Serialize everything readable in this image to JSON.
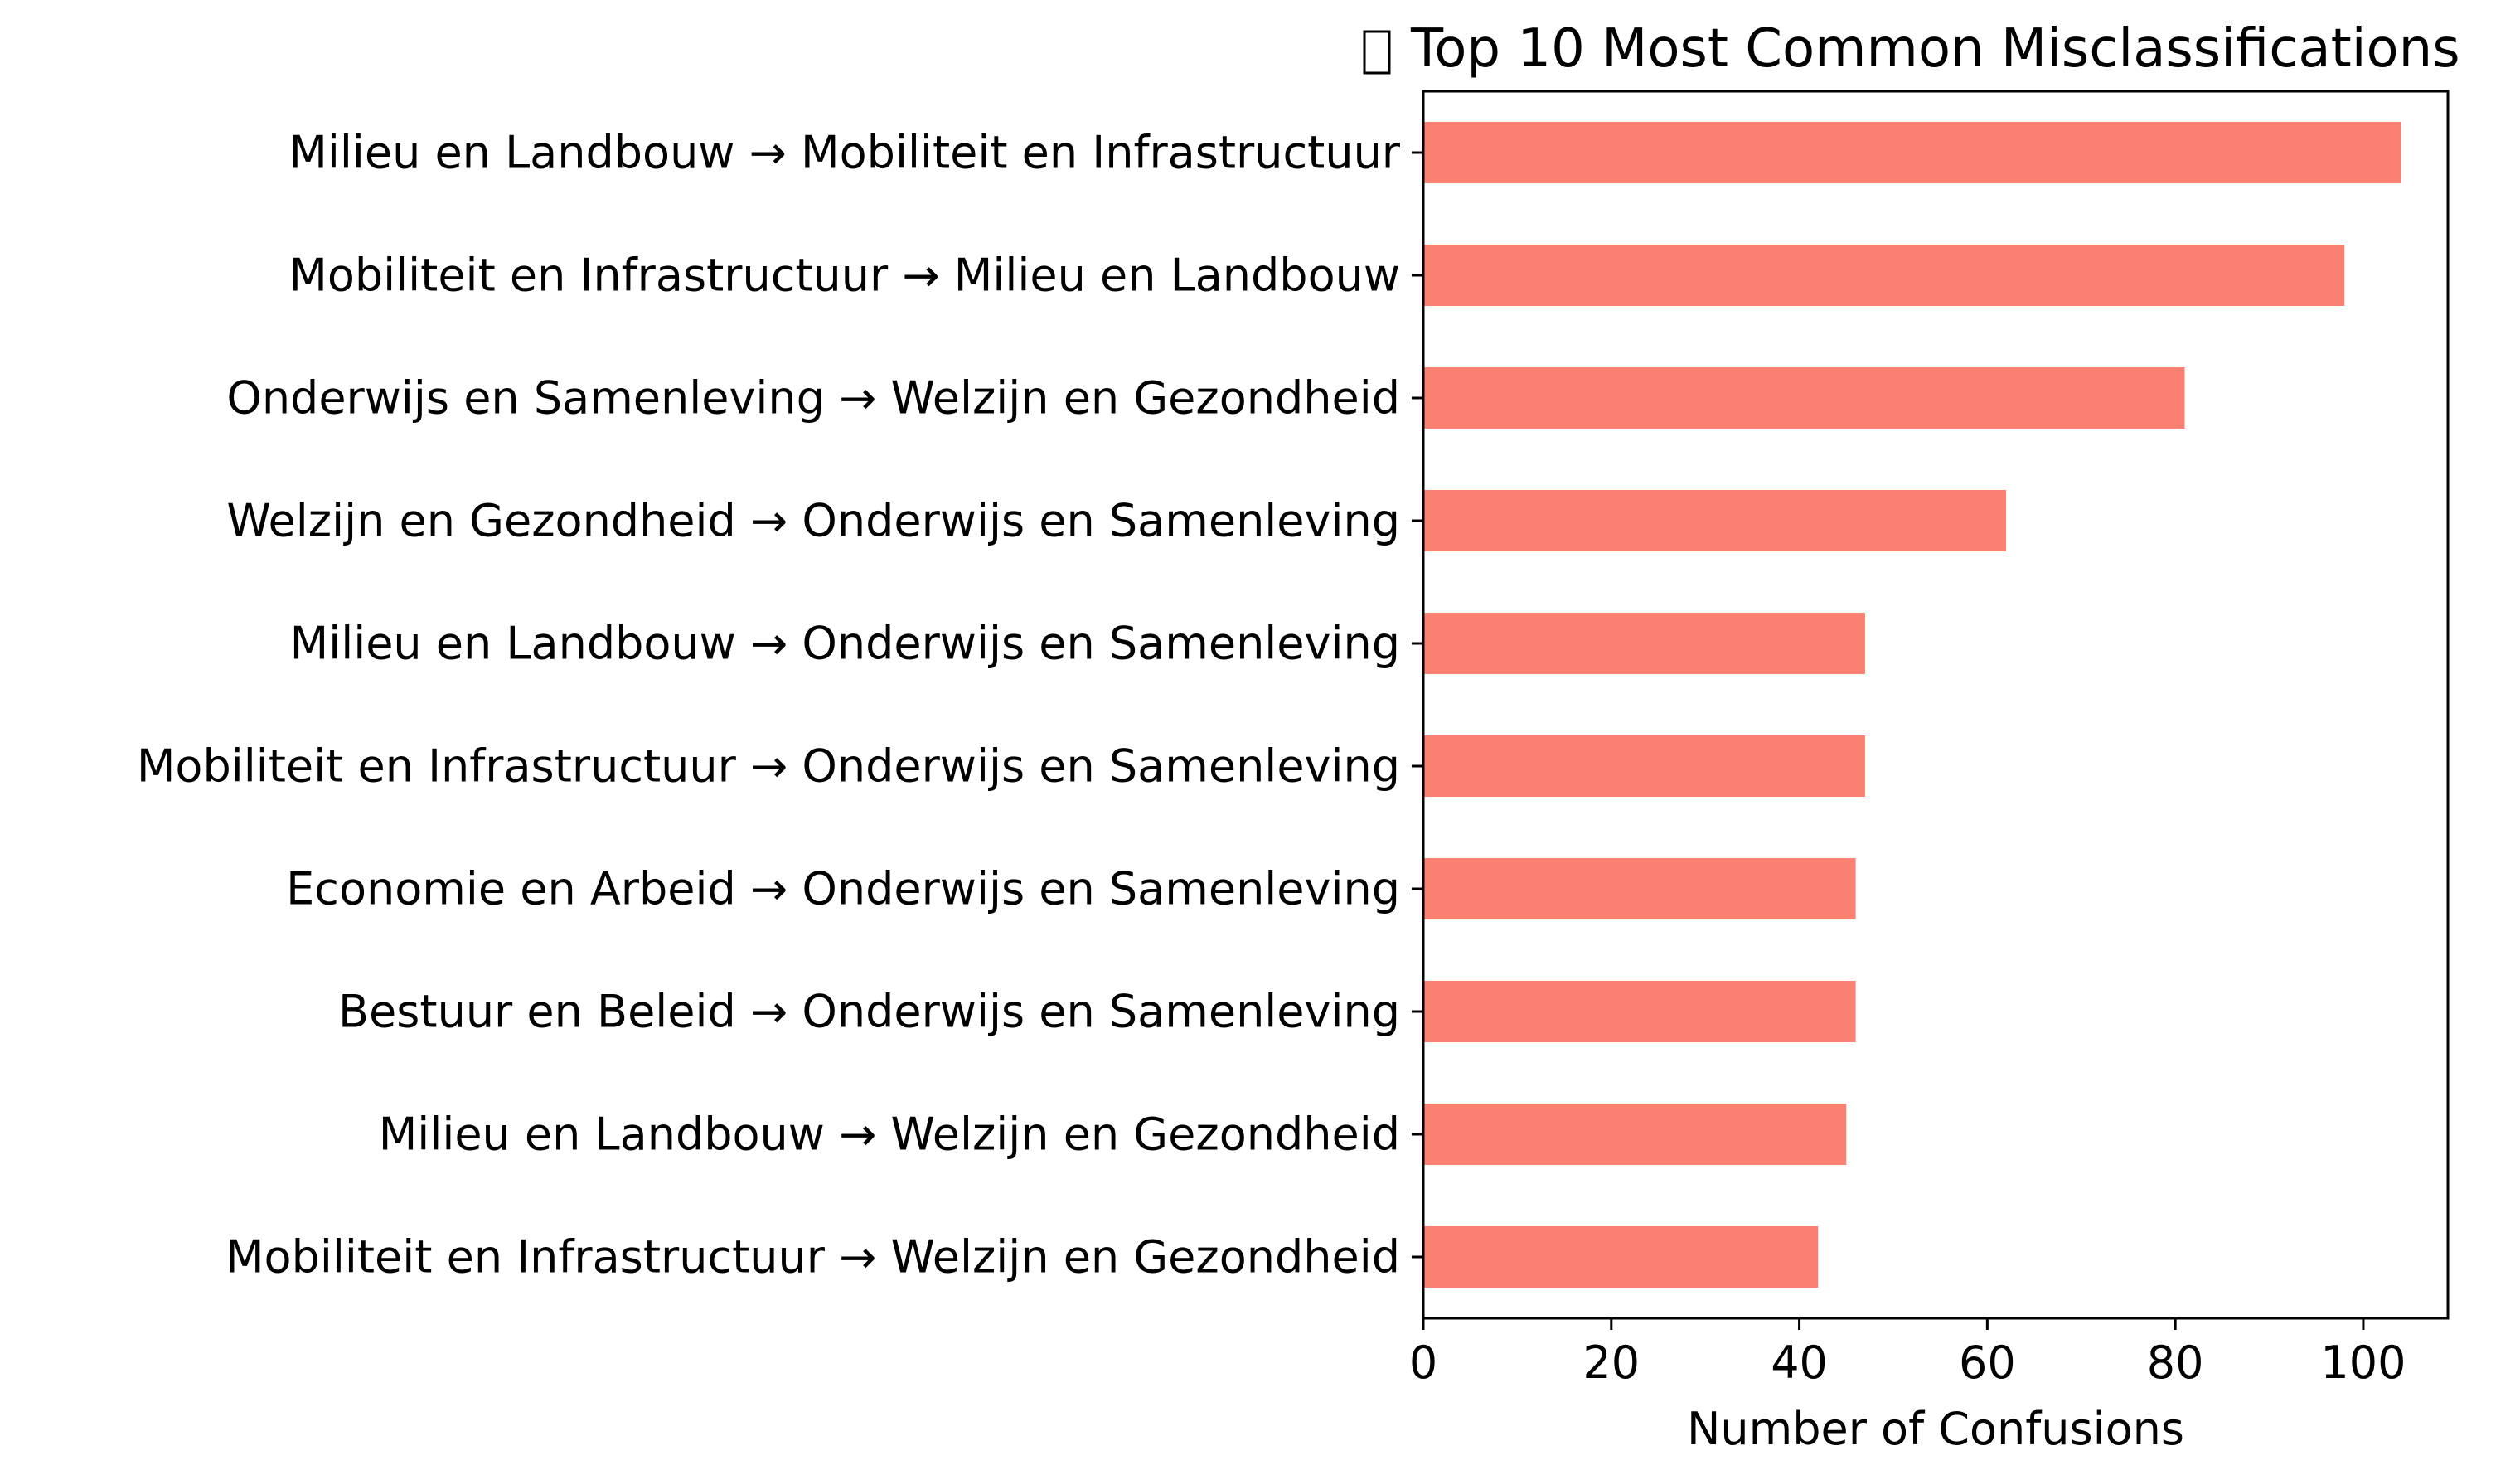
{
  "chart_data": {
    "type": "bar",
    "orientation": "horizontal",
    "title": "Top 10 Most Common Misclassifications",
    "title_icon": "missing-glyph-box",
    "xlabel": "Number of Confusions",
    "ylabel": "",
    "xlim": [
      0,
      109
    ],
    "xticks": [
      0,
      20,
      40,
      60,
      80,
      100
    ],
    "grid": false,
    "legend": "none",
    "bar_color": "#FA8072",
    "categories": [
      "Milieu en Landbouw → Mobiliteit en Infrastructuur",
      "Mobiliteit en Infrastructuur → Milieu en Landbouw",
      "Onderwijs en Samenleving → Welzijn en Gezondheid",
      "Welzijn en Gezondheid → Onderwijs en Samenleving",
      "Milieu en Landbouw → Onderwijs en Samenleving",
      "Mobiliteit en Infrastructuur → Onderwijs en Samenleving",
      "Economie en Arbeid → Onderwijs en Samenleving",
      "Bestuur en Beleid → Onderwijs en Samenleving",
      "Milieu en Landbouw → Welzijn en Gezondheid",
      "Mobiliteit en Infrastructuur → Welzijn en Gezondheid"
    ],
    "values": [
      104,
      98,
      81,
      62,
      47,
      47,
      46,
      46,
      45,
      42
    ]
  }
}
